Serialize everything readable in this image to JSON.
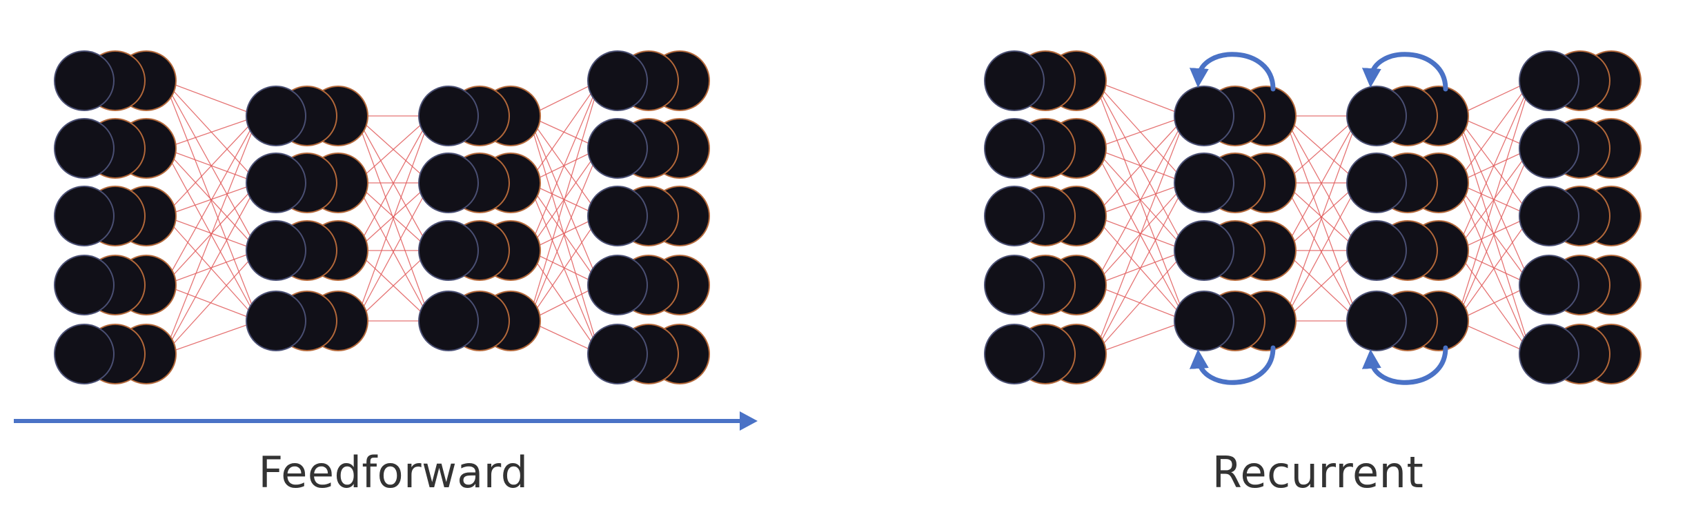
{
  "captions": {
    "feedforward": "Feedforward",
    "recurrent": "Recurrent"
  },
  "networks": [
    {
      "id": "feedforward",
      "layer_sizes": [
        5,
        4,
        4,
        5
      ],
      "recurrent_layers": []
    },
    {
      "id": "recurrent",
      "layer_sizes": [
        5,
        4,
        4,
        5
      ],
      "recurrent_layers": [
        1,
        2
      ]
    }
  ],
  "colors": {
    "neuron_fill": "#111018",
    "neuron_rim_front": "#4a4f73",
    "neuron_rim_back": "#b3683a",
    "connection": "#e05a5a",
    "arrow": "#4a72c6",
    "caption": "#333333"
  }
}
